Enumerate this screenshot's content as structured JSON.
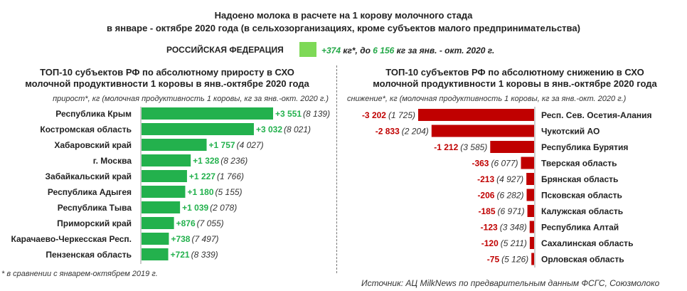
{
  "header": {
    "title_line1": "Надоено молока в расчете на 1 корову молочного стада",
    "title_line2": "в январе - октябре 2020 года (в сельхозорганизациях, кроме субъектов малого предпринимательства)"
  },
  "russia": {
    "label": "РОССИЙСКАЯ ФЕДЕРАЦИЯ",
    "delta": "+374",
    "unit_text": " кг*, до ",
    "total": "6 156",
    "suffix": " кг за янв. - окт. 2020 г."
  },
  "left_panel": {
    "title_line1": "ТОП-10 субъектов РФ по абсолютному приросту в СХО",
    "title_line2": "молочной продуктивности 1 коровы в янв.-октябре 2020 года",
    "note": "прирост*, кг (молочная продуктивность 1 коровы, кг за янв.-окт. 2020 г.)"
  },
  "right_panel": {
    "title_line1": "ТОП-10 субъектов РФ по абсолютному снижению в СХО",
    "title_line2": "молочной продуктивности 1 коровы в янв.-октябре 2020 года",
    "note": "снижение*, кг (молочная продуктивность 1 коровы, кг за янв.-окт. 2020 г.)"
  },
  "footnote": "* в сравнении с январем-октябрем 2019 г.",
  "source": "Источник: АЦ MilkNews по предварительным данным ФСГС, Союзмолоко",
  "colors": {
    "increase": "#23b14d",
    "decrease": "#c00000",
    "russia_bar": "#7ed957"
  },
  "chart_data": [
    {
      "type": "bar",
      "orientation": "horizontal",
      "title": "ТОП-10 субъектов РФ по абсолютному приросту в СХО молочной продуктивности 1 коровы в янв.-октябре 2020 года",
      "categories": [
        "Республика Крым",
        "Костромская область",
        "Хабаровский край",
        "г. Москва",
        "Забайкальский край",
        "Республика Адыгея",
        "Республика Тыва",
        "Приморский край",
        "Карачаево-Черкесская Респ.",
        "Пензенская область"
      ],
      "values": [
        3551,
        3032,
        1757,
        1328,
        1227,
        1180,
        1039,
        876,
        738,
        721
      ],
      "labels": [
        "+3 551",
        "+3 032",
        "+1 757",
        "+1 328",
        "+1 227",
        "+1 180",
        "+1 039",
        "+876",
        "+738",
        "+721"
      ],
      "secondary_labels": [
        "(8 139)",
        "(8 021)",
        "(4 027)",
        "(8 236)",
        "(1 766)",
        "(5 155)",
        "(2 078)",
        "(7 055)",
        "(7 497)",
        "(8 339)"
      ],
      "xlim": [
        0,
        3551
      ]
    },
    {
      "type": "bar",
      "orientation": "horizontal",
      "title": "ТОП-10 субъектов РФ по абсолютному снижению в СХО молочной продуктивности 1 коровы в янв.-октябре 2020 года",
      "categories": [
        "Респ. Сев. Осетия-Алания",
        "Чукотский АО",
        "Республика Бурятия",
        "Тверская область",
        "Брянская область",
        "Псковская область",
        "Калужская область",
        "Республика Алтай",
        "Сахалинская область",
        "Орловская область"
      ],
      "values": [
        -3202,
        -2833,
        -1212,
        -363,
        -213,
        -206,
        -185,
        -123,
        -120,
        -75
      ],
      "labels": [
        "-3 202",
        "-2 833",
        "-1 212",
        "-363",
        "-213",
        "-206",
        "-185",
        "-123",
        "-120",
        "-75"
      ],
      "secondary_labels": [
        "(1 725)",
        "(2 204)",
        "(3 585)",
        "(6 077)",
        "(4 927)",
        "(6 282)",
        "(6 971)",
        "(3 348)",
        "(5 211)",
        "(5 126)"
      ],
      "xlim": [
        -3202,
        0
      ]
    }
  ]
}
